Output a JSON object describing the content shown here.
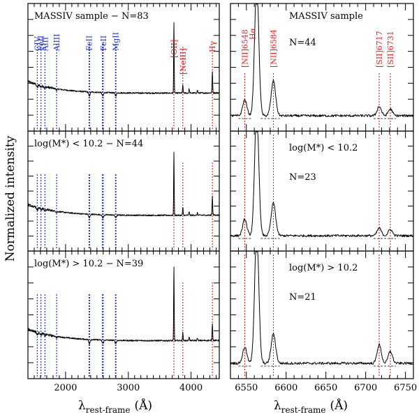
{
  "figure": {
    "ylabel": "Normalized intensity",
    "xlabel_left_main": "λ",
    "xlabel_left_sub": "rest-frame",
    "xlabel_left_unit": "(Å)",
    "xlabel_right_main": "λ",
    "xlabel_right_sub": "rest-frame",
    "xlabel_right_unit": "(Å)"
  },
  "chart_data": [
    {
      "type": "line",
      "panel": "left",
      "xlim": [
        1400,
        4450
      ],
      "xticks": [
        2000,
        3000,
        4000
      ],
      "xticklabels": [
        "2000",
        "3000",
        "4000"
      ],
      "rows": [
        {
          "label": "MASSIV sample − N=83"
        },
        {
          "label": "log(M*) < 10.2 − N=44"
        },
        {
          "label": "log(M*) > 10.2 − N=39"
        }
      ],
      "uv_lines": [
        {
          "name": "CIV",
          "wavelength": 1549
        },
        {
          "name": "FeII",
          "wavelength": 1608
        },
        {
          "name": "AlII",
          "wavelength": 1671
        },
        {
          "name": "AlIII",
          "wavelength": 1857
        },
        {
          "name": "FeII",
          "wavelength": 2374
        },
        {
          "name": "FeII",
          "wavelength": 2383
        },
        {
          "name": "FeII",
          "wavelength": 2587
        },
        {
          "name": "FeII",
          "wavelength": 2600
        },
        {
          "name": "MgII",
          "wavelength": 2796
        },
        {
          "name": "MgII",
          "wavelength": 2803
        }
      ],
      "uv_labels": [
        "CIV",
        "FeII",
        "AlII",
        "AlIII",
        "FeII",
        "FeII",
        "MgII"
      ],
      "emission_lines": [
        {
          "name": "[OII]",
          "wavelength": 3727
        },
        {
          "name": "[NeIII]",
          "wavelength": 3869
        },
        {
          "name": "Hγ",
          "wavelength": 4340
        }
      ],
      "emission_labels": [
        "[OII]",
        "[NeIII]",
        "Hγ"
      ],
      "line_color_uv": "#2233cc",
      "line_color_em": "#e02020"
    },
    {
      "type": "line",
      "panel": "right",
      "xlim": [
        6530,
        6760
      ],
      "xticks": [
        6550,
        6600,
        6650,
        6700,
        6750
      ],
      "xticklabels": [
        "6550",
        "6600",
        "6650",
        "6700",
        "6750"
      ],
      "rows": [
        {
          "label": "MASSIV sample",
          "count": "N=44"
        },
        {
          "label": "log(M*) < 10.2",
          "count": "N=23"
        },
        {
          "label": "log(M*) > 10.2",
          "count": "N=21"
        }
      ],
      "emission_lines": [
        {
          "name": "[NII]6548",
          "wavelength": 6548
        },
        {
          "name": "Hα",
          "wavelength": 6563
        },
        {
          "name": "[NII]6584",
          "wavelength": 6584
        },
        {
          "name": "[SII]6717",
          "wavelength": 6717
        },
        {
          "name": "[SII]6731",
          "wavelength": 6731
        }
      ],
      "emission_labels": [
        "[NII]6548",
        "Hα",
        "[NII]6584",
        "[SII]6717",
        "[SII]6731"
      ],
      "line_color_em": "#e02020"
    }
  ]
}
